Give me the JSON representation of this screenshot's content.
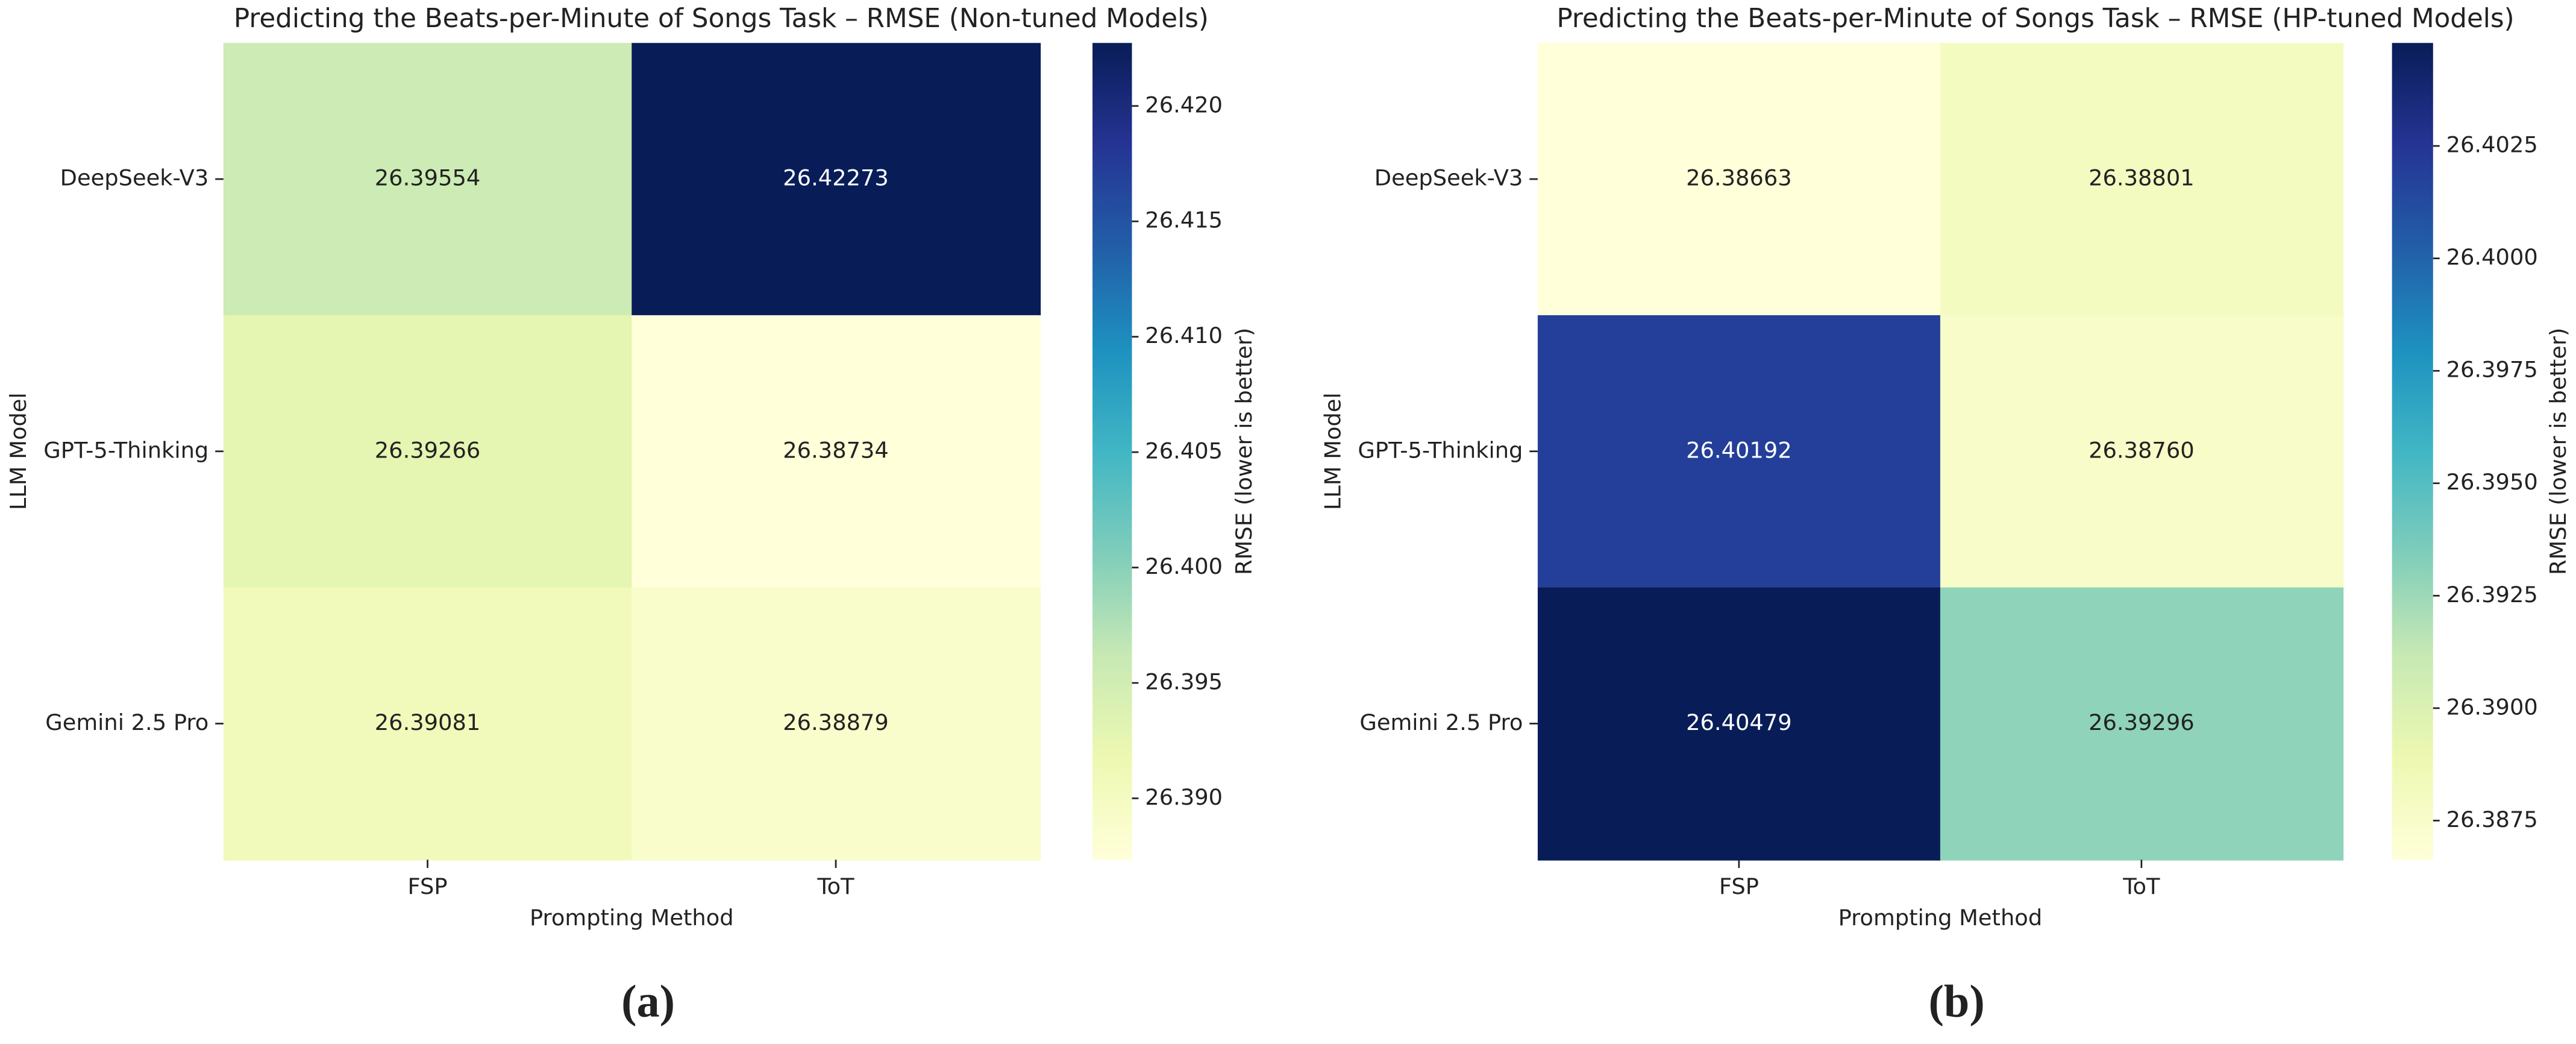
{
  "chart_data": [
    {
      "type": "heatmap",
      "title": "Predicting the Beats-per-Minute of Songs Task – RMSE (Non-tuned Models)",
      "xlabel": "Prompting Method",
      "ylabel": "LLM Model",
      "x": [
        "FSP",
        "ToT"
      ],
      "y": [
        "DeepSeek-V3",
        "GPT-5-Thinking",
        "Gemini 2.5 Pro"
      ],
      "values": [
        [
          26.39554,
          26.42273
        ],
        [
          26.39266,
          26.38734
        ],
        [
          26.39081,
          26.38879
        ]
      ],
      "colormap": "YlGnBu",
      "colorbar_label": "RMSE (lower is better)",
      "clim": [
        26.38734,
        26.42273
      ],
      "cticks": [
        {
          "value": 26.39,
          "label": "26.390"
        },
        26.395,
        {
          "value": 26.4,
          "label": "26.400"
        },
        26.405,
        {
          "value": 26.41,
          "label": "26.410"
        },
        26.415,
        {
          "value": 26.42,
          "label": "26.420"
        }
      ],
      "caption": "(a)"
    },
    {
      "type": "heatmap",
      "title": "Predicting the Beats-per-Minute of Songs Task – RMSE (HP-tuned Models)",
      "xlabel": "Prompting Method",
      "ylabel": "LLM Model",
      "x": [
        "FSP",
        "ToT"
      ],
      "y": [
        "DeepSeek-V3",
        "GPT-5-Thinking",
        "Gemini 2.5 Pro"
      ],
      "values": [
        [
          26.38663,
          26.38801
        ],
        [
          26.40192,
          26.3876
        ],
        [
          26.40479,
          26.39296
        ]
      ],
      "value_labels": [
        [
          "26.38663",
          "26.38801"
        ],
        [
          "26.40192",
          "26.38760"
        ],
        [
          "26.40479",
          "26.39296"
        ]
      ],
      "colormap": "YlGnBu",
      "colorbar_label": "RMSE (lower is better)",
      "clim": [
        26.38663,
        26.40479
      ],
      "cticks": [
        26.3875,
        {
          "value": 26.39,
          "label": "26.3900"
        },
        26.3925,
        {
          "value": 26.395,
          "label": "26.3950"
        },
        26.3975,
        {
          "value": 26.4,
          "label": "26.4000"
        },
        26.4025
      ],
      "caption": "(b)"
    }
  ]
}
